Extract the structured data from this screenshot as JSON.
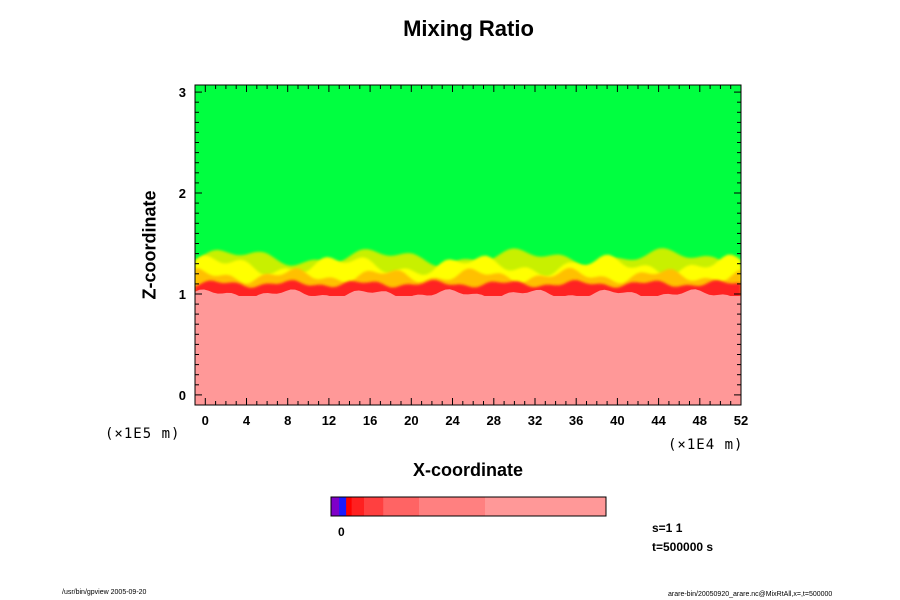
{
  "chart_data": {
    "type": "heatmap",
    "title": "Mixing Ratio",
    "xlabel": "X-coordinate",
    "ylabel": "Z-coordinate",
    "x_ticks": [
      "0",
      "4",
      "8",
      "12",
      "16",
      "20",
      "24",
      "28",
      "32",
      "36",
      "40",
      "44",
      "48",
      "52"
    ],
    "y_ticks": [
      "0",
      "1",
      "2",
      "3"
    ],
    "xlim": [
      -1,
      52
    ],
    "ylim": [
      -0.1,
      3.07
    ],
    "x_scale_label": "(×1E4 m)",
    "y_scale_label": "(×1E5 m)",
    "colorbar": {
      "label": "0",
      "colors": [
        "#7f00c8",
        "#1a1aff",
        "#ff0000",
        "#ff2020",
        "#ff4040",
        "#ff6464",
        "#ff8080",
        "#ff9898"
      ]
    },
    "regions": [
      {
        "field": "lower layer",
        "color": "#ff9898",
        "z_top": 1.0
      },
      {
        "field": "transition layer",
        "color": "#ff2020",
        "z_range": [
          0.95,
          1.12
        ]
      },
      {
        "field": "mixing zone",
        "colors": [
          "#ffc000",
          "#ffff00",
          "#c8f000"
        ],
        "z_range": [
          1.1,
          1.5
        ]
      },
      {
        "field": "upper layer",
        "color": "#00ff40",
        "z_bottom": 1.3
      }
    ]
  },
  "info": {
    "scale": "s=1 1",
    "time": "t=500000 s"
  },
  "footer": {
    "left": "/usr/bin/gpview 2005-09-20",
    "right": "arare-bin/20050920_arare.nc@MixRtAll,x=,t=500000"
  }
}
